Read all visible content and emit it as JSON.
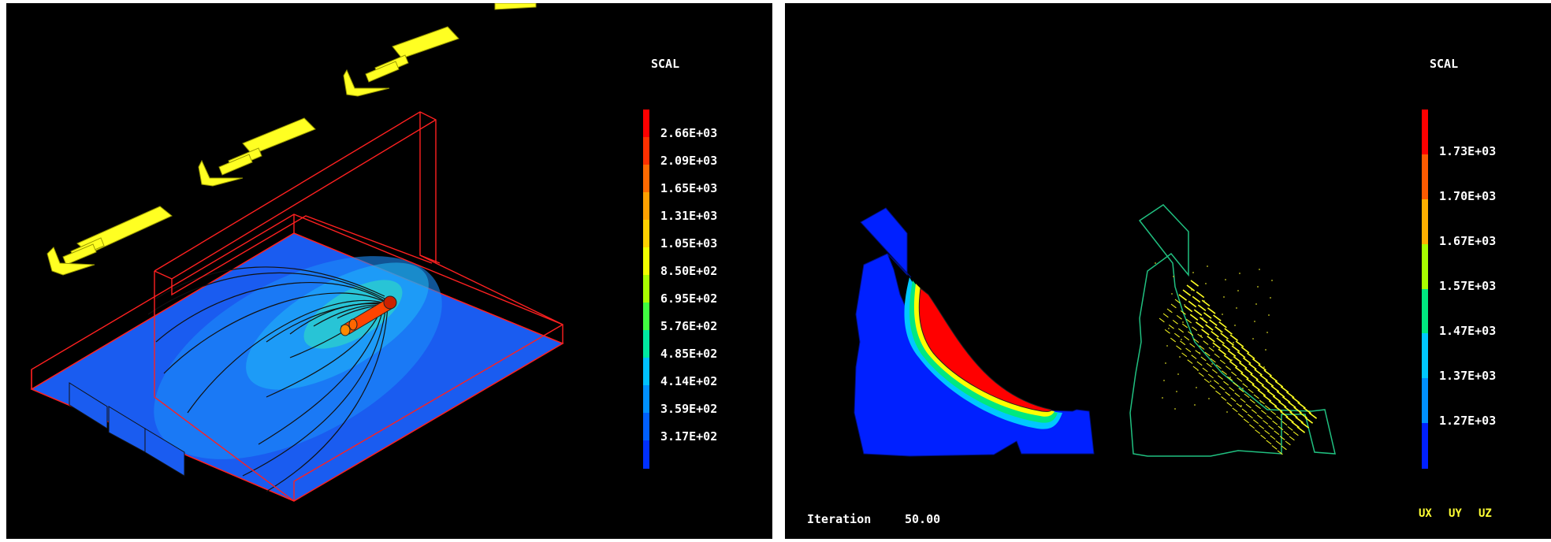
{
  "left_panel": {
    "legend_title": "SCAL",
    "ticks": [
      "2.66E+03",
      "2.09E+03",
      "1.65E+03",
      "1.31E+03",
      "1.05E+03",
      "8.50E+02",
      "6.95E+02",
      "5.76E+02",
      "4.85E+02",
      "4.14E+02",
      "3.59E+02",
      "3.17E+02"
    ],
    "colors": [
      "#ff0000",
      "#ff3000",
      "#ff6a00",
      "#ffa000",
      "#ffd000",
      "#f0ff00",
      "#a8ff00",
      "#40ff40",
      "#00e8a0",
      "#00c0ff",
      "#0090ff",
      "#0060ff",
      "#0030ff"
    ]
  },
  "right_panel": {
    "legend_title": "SCAL",
    "ticks": [
      "1.73E+03",
      "1.70E+03",
      "1.67E+03",
      "1.57E+03",
      "1.47E+03",
      "1.37E+03",
      "1.27E+03"
    ],
    "colors": [
      "#ff0000",
      "#ff5a00",
      "#ffb000",
      "#a8ff00",
      "#00e880",
      "#00c8ff",
      "#0090ff",
      "#0020ff"
    ],
    "iteration_label": "Iteration",
    "iteration_value": "50.00",
    "components": [
      "UX",
      "UY",
      "UZ"
    ]
  }
}
